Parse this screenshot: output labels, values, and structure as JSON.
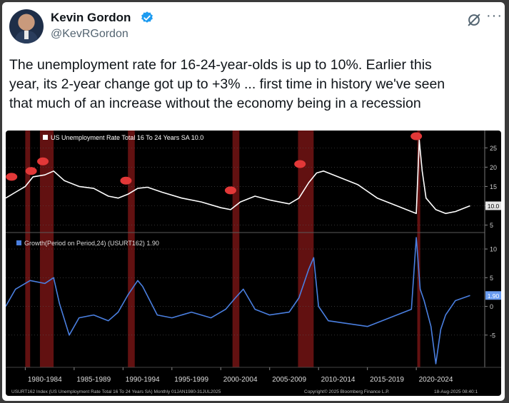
{
  "author": {
    "name": "Kevin Gordon",
    "handle": "@KevRGordon"
  },
  "tweet": {
    "lines": [
      "The unemployment rate for 16-24-year-olds is up to 10%. Earlier this",
      "year, its 2-year change got up to +3% ... first time in history we've seen",
      "that much of an increase without the economy being in a recession"
    ]
  },
  "icons": {
    "verified": "verified-badge-icon",
    "grok": "grok-icon",
    "more": "more-icon"
  },
  "colors": {
    "upper_series": "#ffffff",
    "lower_series": "#4a7fe0",
    "recession_band": "#7a1515",
    "event_marker": "#e23838",
    "value_tag": "#6a9cf0"
  },
  "chart_data": [
    {
      "type": "line",
      "legend": "US Unemployment Rate Total 16 To 24 Years SA 10.0",
      "last_value_label": "10.0",
      "yticks": [
        5,
        10,
        15,
        20,
        25
      ],
      "ylim": [
        4,
        28
      ],
      "xlim": [
        1978,
        2027
      ],
      "x": [
        1978.0,
        1979.0,
        1980.0,
        1980.8,
        1982.0,
        1982.9,
        1984.0,
        1985.5,
        1987.0,
        1988.5,
        1989.5,
        1990.5,
        1991.5,
        1992.5,
        1994.0,
        1996.0,
        1998.0,
        2000.0,
        2001.0,
        2002.0,
        2003.5,
        2005.0,
        2007.0,
        2008.0,
        2009.0,
        2009.8,
        2010.5,
        2012.0,
        2014.0,
        2016.0,
        2018.0,
        2019.5,
        2020.0,
        2020.3,
        2020.6,
        2021.0,
        2022.0,
        2023.0,
        2024.0,
        2025.5
      ],
      "values": [
        12.0,
        13.5,
        15.0,
        17.5,
        18.0,
        19.0,
        16.5,
        15.0,
        14.5,
        12.5,
        12.0,
        13.0,
        14.5,
        14.8,
        13.5,
        12.0,
        11.0,
        9.5,
        9.0,
        11.0,
        12.5,
        11.5,
        10.5,
        12.0,
        16.0,
        18.5,
        19.0,
        17.5,
        15.5,
        12.0,
        10.0,
        8.5,
        8.0,
        27.0,
        19.0,
        12.0,
        9.0,
        8.0,
        8.5,
        10.0
      ],
      "recessions": [
        [
          1980.0,
          1980.5
        ],
        [
          1981.5,
          1982.9
        ],
        [
          1990.5,
          1991.2
        ],
        [
          2001.2,
          2001.9
        ],
        [
          2007.9,
          2009.5
        ],
        [
          2020.1,
          2020.4
        ]
      ]
    },
    {
      "type": "line",
      "legend": "Growth(Period on Period,24) (USURT162) 1.90",
      "last_value_label": "1.90",
      "yticks": [
        -5,
        0,
        5,
        10
      ],
      "ylim": [
        -10,
        12
      ],
      "xlim": [
        1978,
        2027
      ],
      "x": [
        1978.0,
        1979.0,
        1980.5,
        1982.0,
        1982.9,
        1983.5,
        1984.5,
        1985.5,
        1987.0,
        1988.5,
        1989.5,
        1990.5,
        1991.5,
        1992.0,
        1993.5,
        1995.0,
        1997.0,
        1999.0,
        2000.5,
        2001.5,
        2002.3,
        2003.5,
        2005.0,
        2007.0,
        2008.0,
        2009.0,
        2009.5,
        2010.0,
        2011.0,
        2013.0,
        2015.0,
        2016.5,
        2018.0,
        2019.5,
        2020.0,
        2020.4,
        2020.8,
        2021.5,
        2022.0,
        2022.5,
        2023.0,
        2024.0,
        2025.5
      ],
      "values": [
        0.0,
        3.0,
        4.5,
        4.0,
        5.0,
        0.5,
        -5.0,
        -2.0,
        -1.5,
        -2.5,
        -1.0,
        2.0,
        4.5,
        3.5,
        -1.5,
        -2.0,
        -1.0,
        -2.0,
        -0.5,
        1.5,
        3.0,
        -0.5,
        -1.5,
        -1.0,
        1.5,
        6.5,
        8.5,
        0.0,
        -2.5,
        -3.0,
        -3.5,
        -2.5,
        -1.5,
        -0.5,
        12.0,
        3.0,
        1.0,
        -3.5,
        -10.0,
        -4.0,
        -1.5,
        1.0,
        1.9
      ],
      "recessions": [
        [
          1980.0,
          1980.5
        ],
        [
          1981.5,
          1982.9
        ],
        [
          1990.5,
          1991.2
        ],
        [
          2001.2,
          2001.9
        ],
        [
          2007.9,
          2009.5
        ],
        [
          2020.1,
          2020.4
        ]
      ]
    }
  ],
  "axis": {
    "x_labels": [
      "1980-1984",
      "1985-1989",
      "1990-1994",
      "1995-1999",
      "2000-2004",
      "2005-2009",
      "2010-2014",
      "2015-2019",
      "2020-2024"
    ],
    "footer_left": "USURT162 Index (US Unemployment Rate Total 16 To 24 Years SA) Monthly 01JAN1980-31JUL2025",
    "footer_center": "Copyright© 2025 Bloomberg Finance L.P.",
    "footer_right": "18-Aug-2025 08:40:1"
  },
  "markers": [
    {
      "panel": 0,
      "x": 1978.6,
      "y": 17.5
    },
    {
      "panel": 0,
      "x": 1980.6,
      "y": 19.0
    },
    {
      "panel": 0,
      "x": 1981.8,
      "y": 21.5
    },
    {
      "panel": 0,
      "x": 1990.3,
      "y": 16.5
    },
    {
      "panel": 0,
      "x": 2001.0,
      "y": 14.0
    },
    {
      "panel": 0,
      "x": 2008.1,
      "y": 20.8
    },
    {
      "panel": 0,
      "x": 2020.0,
      "y": 28.0
    }
  ]
}
